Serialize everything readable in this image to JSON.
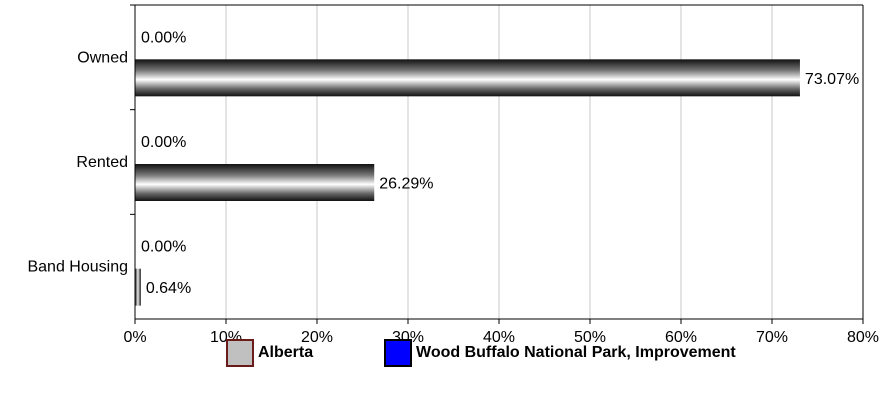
{
  "chart_data": {
    "type": "bar",
    "orientation": "horizontal",
    "categories": [
      "Owned",
      "Rented",
      "Band Housing"
    ],
    "series": [
      {
        "name": "Alberta",
        "values": [
          73.07,
          26.29,
          0.64
        ],
        "labels": [
          "73.07%",
          "26.29%",
          "0.64%"
        ],
        "color": "#c0c0c0"
      },
      {
        "name": "Wood Buffalo National Park, Improvement",
        "values": [
          0,
          0,
          0
        ],
        "labels": [
          "0.00%",
          "0.00%",
          "0.00%"
        ],
        "color": "#0000ff"
      }
    ],
    "xlim": [
      0,
      80
    ],
    "xticks": [
      "0%",
      "10%",
      "20%",
      "30%",
      "40%",
      "50%",
      "60%",
      "70%",
      "80%"
    ],
    "grid": true,
    "legend_position": "bottom"
  },
  "legend": {
    "alberta": {
      "label": "Alberta",
      "fill": "#c0c0c0",
      "border": "#6b1a1a"
    },
    "wood_buffalo": {
      "label": "Wood Buffalo National Park, Improvement",
      "fill": "#0000ff",
      "border": "#000000"
    }
  }
}
